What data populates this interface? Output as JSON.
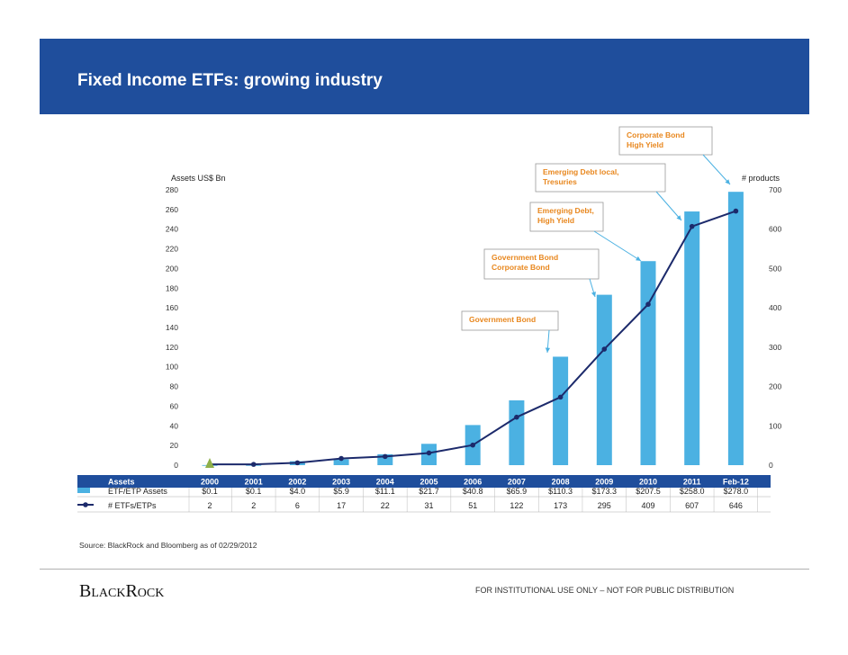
{
  "page": {
    "title": "Fixed Income ETFs: growing industry",
    "source": "Source: BlackRock and Bloomberg as of 02/29/2012",
    "logo": "BlackRock",
    "disclaimer": "FOR INSTITUTIONAL  USE ONLY – NOT FOR PUBLIC DISTRIBUTION",
    "colors": {
      "header": "#1f4e9c",
      "bar": "#4bb1e2",
      "line": "#1c2a6b",
      "annotation": "#e8871e",
      "first_marker": "#8fb04a"
    }
  },
  "chart_data": {
    "type": "bar",
    "categories": [
      "2000",
      "2001",
      "2002",
      "2003",
      "2004",
      "2005",
      "2006",
      "2007",
      "2008",
      "2009",
      "2010",
      "2011",
      "Feb-12"
    ],
    "series": [
      {
        "name": "ETF/ETP Assets",
        "type": "bar",
        "axis": "left",
        "values": [
          0.1,
          0.1,
          4.0,
          5.9,
          11.1,
          21.7,
          40.8,
          65.9,
          110.3,
          173.3,
          207.5,
          258.0,
          278.0
        ],
        "labels": [
          "$0.1",
          "$0.1",
          "$4.0",
          "$5.9",
          "$11.1",
          "$21.7",
          "$40.8",
          "$65.9",
          "$110.3",
          "$173.3",
          "$207.5",
          "$258.0",
          "$278.0"
        ]
      },
      {
        "name": "# ETFs/ETPs",
        "type": "line",
        "axis": "right",
        "values": [
          2,
          2,
          6,
          17,
          22,
          31,
          51,
          122,
          173,
          295,
          409,
          607,
          646
        ],
        "labels": [
          "2",
          "2",
          "6",
          "17",
          "22",
          "31",
          "51",
          "122",
          "173",
          "295",
          "409",
          "607",
          "646"
        ]
      }
    ],
    "left_axis": {
      "label": "Assets US$ Bn",
      "min": 0,
      "max": 280,
      "ticks": [
        "0",
        "20",
        "40",
        "60",
        "80",
        "100",
        "120",
        "140",
        "160",
        "180",
        "200",
        "220",
        "240",
        "260",
        "280"
      ]
    },
    "right_axis": {
      "label": "# products",
      "min": 0,
      "max": 700,
      "ticks": [
        "0",
        "100",
        "200",
        "300",
        "400",
        "500",
        "600",
        "700"
      ]
    },
    "table_header": "Assets",
    "annotations": [
      {
        "lines": [
          "Government Bond"
        ],
        "target": "2008"
      },
      {
        "lines": [
          "Government Bond",
          "Corporate Bond"
        ],
        "target": "2009"
      },
      {
        "lines": [
          "Emerging Debt,",
          "High Yield"
        ],
        "target": "2010"
      },
      {
        "lines": [
          "Emerging Debt local,",
          "Tresuries"
        ],
        "target": "2011"
      },
      {
        "lines": [
          "Corporate Bond",
          "High Yield"
        ],
        "target": "Feb-12"
      }
    ]
  }
}
